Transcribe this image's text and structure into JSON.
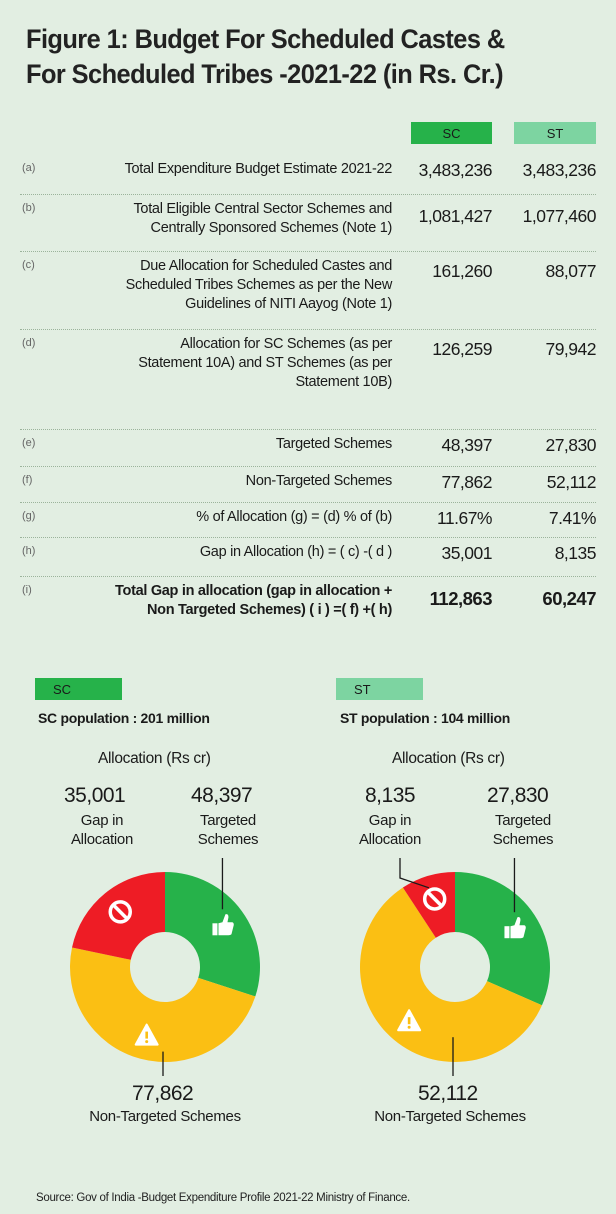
{
  "title": {
    "line1": "Figure 1: Budget For Scheduled Castes  &",
    "line2": "For Scheduled Tribes -2021-22 (in Rs. Cr.)"
  },
  "table": {
    "col_sc": "SC",
    "col_st": "ST",
    "rows": [
      {
        "idx": "(a)",
        "lines": [
          "Total Expenditure Budget Estimate 2021-22"
        ],
        "sc": "3,483,236",
        "st": "3,483,236"
      },
      {
        "idx": "(b)",
        "lines": [
          "Total Eligible Central Sector Schemes and",
          "Centrally Sponsored Schemes (Note 1)"
        ],
        "sc": "1,081,427",
        "st": "1,077,460"
      },
      {
        "idx": "(c)",
        "lines": [
          "Due Allocation for Scheduled Castes  and",
          "Scheduled Tribes Schemes as per the New",
          "Guidelines of NITI Aayog  (Note 1)"
        ],
        "sc": "161,260",
        "st": "88,077"
      },
      {
        "idx": "(d)",
        "lines": [
          "Allocation for SC Schemes (as per",
          "Statement 10A) and ST Schemes (as per",
          "Statement 10B)"
        ],
        "sc": "126,259",
        "st": "79,942"
      },
      {
        "idx": "(e)",
        "lines": [
          "Targeted Schemes"
        ],
        "sc": "48,397",
        "st": "27,830"
      },
      {
        "idx": "(f)",
        "lines": [
          "Non-Targeted Schemes"
        ],
        "sc": "77,862",
        "st": "52,112"
      },
      {
        "idx": "(g)",
        "lines": [
          "% of Allocation (g) = (d) % of (b)"
        ],
        "sc": "11.67%",
        "st": "7.41%"
      },
      {
        "idx": "(h)",
        "lines": [
          "Gap in Allocation (h) = ( c) -( d )"
        ],
        "sc": "35,001",
        "st": "8,135"
      },
      {
        "idx": "(i)",
        "lines": [
          "Total Gap in allocation (gap in allocation +",
          "Non Targeted Schemes) ( i ) =( f) +( h)"
        ],
        "sc": "112,863",
        "st": "60,247"
      }
    ]
  },
  "colors": {
    "green": "#26b24a",
    "light_green": "#7dd4a1",
    "red": "#ee1c25",
    "yellow": "#fbbf13"
  },
  "panels": {
    "sc": {
      "tag": "SC",
      "population": "SC population : 201 million",
      "alloc_title": "Allocation (Rs cr)",
      "gap_value": "35,001",
      "gap_label_1": "Gap in",
      "gap_label_2": "Allocation",
      "targeted_value": "48,397",
      "targeted_label_1": "Targeted",
      "targeted_label_2": "Schemes",
      "nontargeted_value": "77,862",
      "nontargeted_label": "Non-Targeted Schemes"
    },
    "st": {
      "tag": "ST",
      "population": "ST population : 104 million",
      "alloc_title": "Allocation (Rs cr)",
      "gap_value": "8,135",
      "gap_label_1": "Gap in",
      "gap_label_2": "Allocation",
      "targeted_value": "27,830",
      "targeted_label_1": "Targeted",
      "targeted_label_2": "Schemes",
      "nontargeted_value": "52,112",
      "nontargeted_label": "Non-Targeted Schemes"
    }
  },
  "chart_data": [
    {
      "type": "pie",
      "title": "Allocation (Rs cr)",
      "subtitle": "SC population : 201 million",
      "categories": [
        "Targeted Schemes",
        "Non-Targeted Schemes",
        "Gap in Allocation"
      ],
      "values": [
        48397,
        77862,
        35001
      ],
      "colors": [
        "#26b24a",
        "#fbbf13",
        "#ee1c25"
      ],
      "icons": [
        "thumbs-up-icon",
        "warning-icon",
        "no-entry-icon"
      ]
    },
    {
      "type": "pie",
      "title": "Allocation (Rs cr)",
      "subtitle": "ST population : 104 million",
      "categories": [
        "Targeted Schemes",
        "Non-Targeted Schemes",
        "Gap in Allocation"
      ],
      "values": [
        27830,
        52112,
        8135
      ],
      "colors": [
        "#26b24a",
        "#fbbf13",
        "#ee1c25"
      ],
      "icons": [
        "thumbs-up-icon",
        "warning-icon",
        "no-entry-icon"
      ]
    }
  ],
  "source": "Source: Gov of India  -Budget Expenditure Profile 2021-22 Ministry of Finance."
}
